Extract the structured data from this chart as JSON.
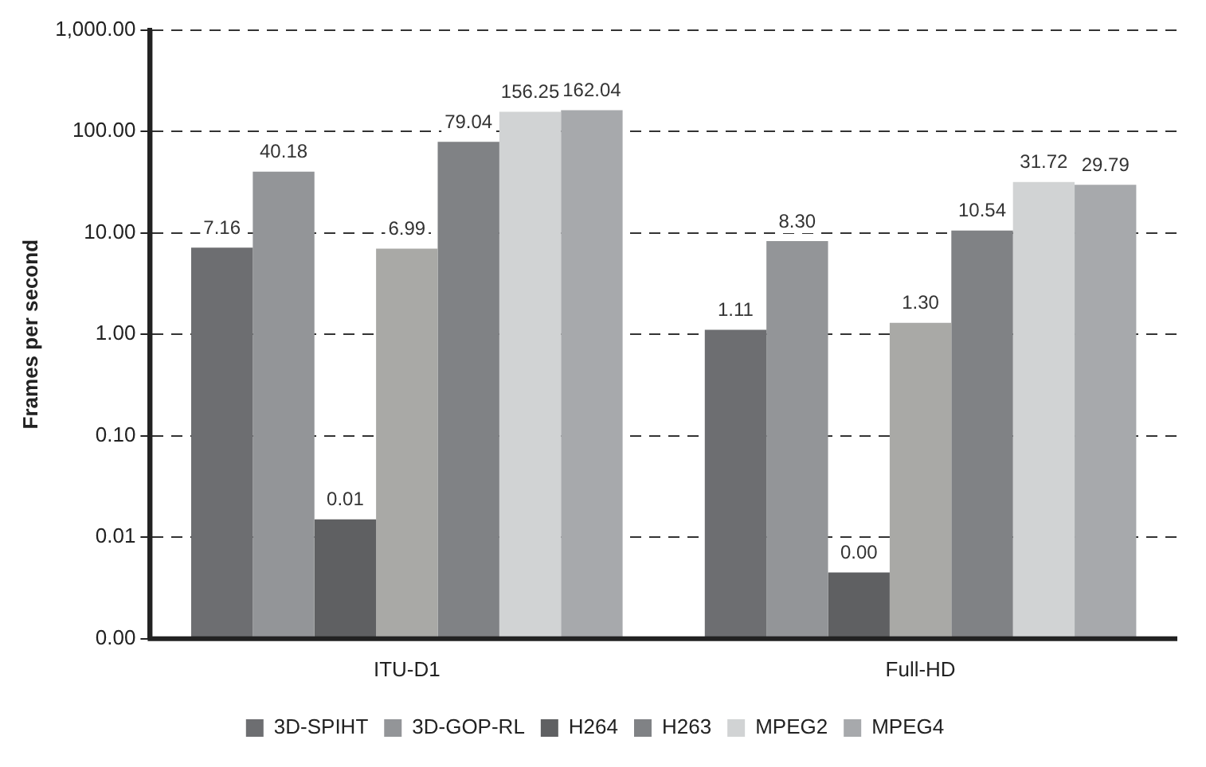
{
  "chart_data": {
    "type": "bar",
    "ylabel": "Frames per second",
    "categories": [
      "ITU-D1",
      "Full-HD"
    ],
    "log": true,
    "grid": "y",
    "legend": "bottom",
    "ylim": [
      0.001,
      1000
    ],
    "yticks": [
      {
        "value": 0.001,
        "label": "0.00"
      },
      {
        "value": 0.01,
        "label": "0.01"
      },
      {
        "value": 0.1,
        "label": "0.10"
      },
      {
        "value": 1,
        "label": "1.00"
      },
      {
        "value": 10,
        "label": "10.00"
      },
      {
        "value": 100,
        "label": "100.00"
      },
      {
        "value": 1000,
        "label": "1,000.00"
      }
    ],
    "series": [
      {
        "name": "3D-SPIHT",
        "color": "#6d6e71",
        "values": [
          7.16,
          1.11
        ],
        "value_labels": [
          "7.16",
          "1.11"
        ]
      },
      {
        "name": "3D-GOP-RL",
        "color": "#939598",
        "values": [
          40.18,
          8.3
        ],
        "value_labels": [
          "40.18",
          "8.30"
        ]
      },
      {
        "name": "H264",
        "color": "#5f6062",
        "values": [
          0.015,
          0.0045
        ],
        "value_labels": [
          "0.01",
          "0.00"
        ]
      },
      {
        "color": "#a9a9a6",
        "values": [
          6.99,
          1.3
        ],
        "value_labels": [
          "6.99",
          "1.30"
        ]
      },
      {
        "name": "H263",
        "color": "#808285",
        "values": [
          79.04,
          10.54
        ],
        "value_labels": [
          "79.04",
          "10.54"
        ]
      },
      {
        "name": "MPEG2",
        "color": "#d1d3d4",
        "values": [
          156.25,
          31.72
        ],
        "value_labels": [
          "156.25",
          "31.72"
        ]
      },
      {
        "name": "MPEG4",
        "color": "#a7a9ac",
        "values": [
          162.04,
          29.79
        ],
        "value_labels": [
          "162.04",
          "29.79"
        ]
      }
    ]
  }
}
